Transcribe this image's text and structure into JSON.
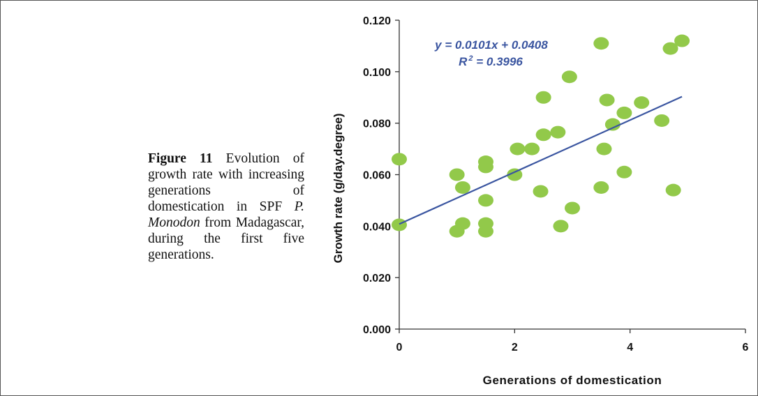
{
  "caption": {
    "figure_label": "Figure 11",
    "text_before_species": "Evolution of growth rate with increasing generations of domestication in SPF",
    "species": "P. Monodon",
    "text_after_species": "from Madagascar, during the first five generations."
  },
  "chart_data": {
    "type": "scatter",
    "xlabel": "Generations of domestication",
    "ylabel": "Growth rate (g/day.degree)",
    "xlim": [
      0,
      6
    ],
    "ylim": [
      0,
      0.12
    ],
    "x_ticks": [
      "0",
      "2",
      "4",
      "6"
    ],
    "y_ticks": [
      "0.000",
      "0.020",
      "0.040",
      "0.060",
      "0.080",
      "0.100",
      "0.120"
    ],
    "grid": false,
    "legend": "none",
    "marker_color": "#92c94a",
    "trendline_color": "#3a55a0",
    "equation_text": "y = 0.0101x + 0.0408",
    "r2_label": "R",
    "r2_exponent": "2",
    "r2_value": " = 0.3996",
    "trendline": {
      "slope": 0.0101,
      "intercept": 0.0408,
      "x_range": [
        0,
        4.9
      ]
    },
    "series": [
      {
        "x": [
          0,
          0,
          1.0,
          1.0,
          1.1,
          1.1,
          1.5,
          1.5,
          1.5,
          1.5,
          1.5,
          2.0,
          2.05,
          2.3,
          2.45,
          2.5,
          2.5,
          2.75,
          2.8,
          2.95,
          3.0,
          3.5,
          3.5,
          3.55,
          3.6,
          3.7,
          3.9,
          3.9,
          4.2,
          4.55,
          4.75,
          4.7,
          4.9
        ],
        "y": [
          0.066,
          0.0405,
          0.06,
          0.038,
          0.055,
          0.041,
          0.065,
          0.063,
          0.05,
          0.041,
          0.038,
          0.06,
          0.07,
          0.07,
          0.0535,
          0.0755,
          0.09,
          0.0765,
          0.04,
          0.098,
          0.047,
          0.111,
          0.055,
          0.07,
          0.089,
          0.0795,
          0.084,
          0.061,
          0.088,
          0.081,
          0.054,
          0.109,
          0.112
        ]
      }
    ]
  }
}
